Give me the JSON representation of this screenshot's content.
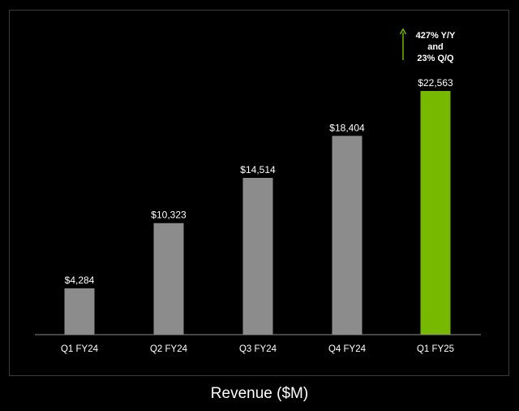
{
  "chart_data": {
    "type": "bar",
    "title": "Revenue ($M)",
    "xlabel": "",
    "ylabel": "",
    "categories": [
      "Q1 FY24",
      "Q2 FY24",
      "Q3 FY24",
      "Q4 FY24",
      "Q1 FY25"
    ],
    "values": [
      4284,
      10323,
      14514,
      18404,
      22563
    ],
    "value_labels": [
      "$4,284",
      "$10,323",
      "$14,514",
      "$18,404",
      "$22,563"
    ],
    "ylim": [
      0,
      22563
    ],
    "grid": false,
    "legend": "none",
    "colors": {
      "default_bar": "#8c8c8c",
      "highlight_bar": "#76b900",
      "axis": "#8a8a8a",
      "arrow": "#76b900"
    },
    "highlight_index": 4,
    "annotation": {
      "lines": [
        "427% Y/Y",
        "and",
        "23% Q/Q"
      ],
      "icon": "up-arrow-icon"
    }
  }
}
